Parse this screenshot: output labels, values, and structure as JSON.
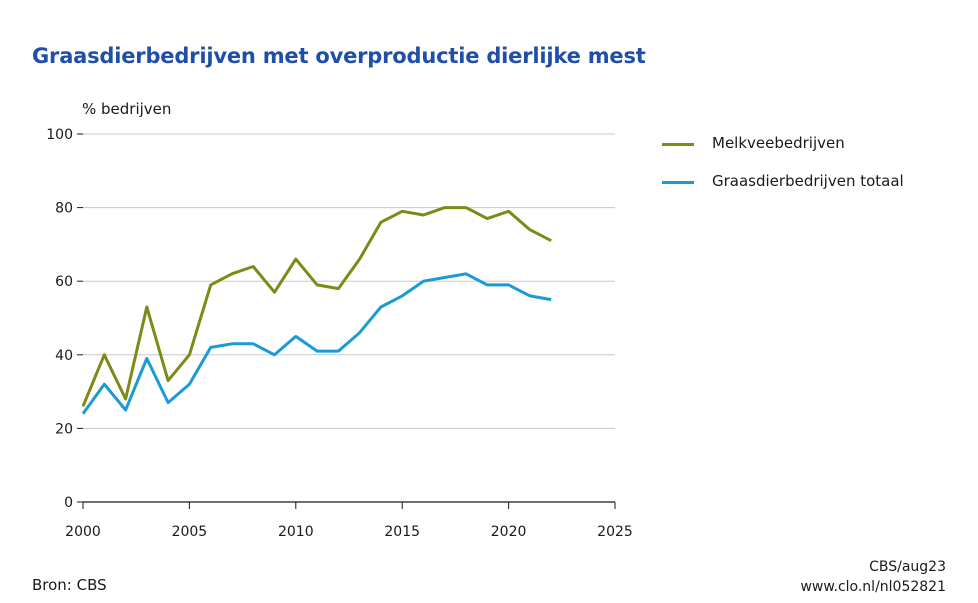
{
  "title": "Graasdierbedrijven met overproductie dierlijke mest",
  "chart_data": {
    "type": "line",
    "ylabel": "% bedrijven",
    "xlabel": "",
    "ylim": [
      0,
      100
    ],
    "xlim": [
      2000,
      2025
    ],
    "yticks": [
      0,
      20,
      40,
      60,
      80,
      100
    ],
    "xticks": [
      2000,
      2005,
      2010,
      2015,
      2020,
      2025
    ],
    "grid": "horizontal",
    "legend_position": "right",
    "x": [
      2000,
      2001,
      2002,
      2003,
      2004,
      2005,
      2006,
      2007,
      2008,
      2009,
      2010,
      2011,
      2012,
      2013,
      2014,
      2015,
      2016,
      2017,
      2018,
      2019,
      2020,
      2021,
      2022
    ],
    "series": [
      {
        "name": "Melkveebedrijven",
        "color": "#7d8a16",
        "values": [
          26,
          40,
          28,
          53,
          33,
          40,
          59,
          62,
          64,
          57,
          66,
          59,
          58,
          66,
          76,
          79,
          78,
          80,
          80,
          77,
          79,
          74,
          71
        ]
      },
      {
        "name": "Graasdierbedrijven totaal",
        "color": "#1a9ad6",
        "values": [
          24,
          32,
          25,
          39,
          27,
          32,
          42,
          43,
          43,
          40,
          45,
          41,
          41,
          46,
          53,
          56,
          60,
          61,
          62,
          59,
          59,
          56,
          55
        ]
      }
    ]
  },
  "footer": {
    "source": "Bron: CBS",
    "credit_line1": "CBS/aug23",
    "credit_line2": "www.clo.nl/nl052821"
  }
}
